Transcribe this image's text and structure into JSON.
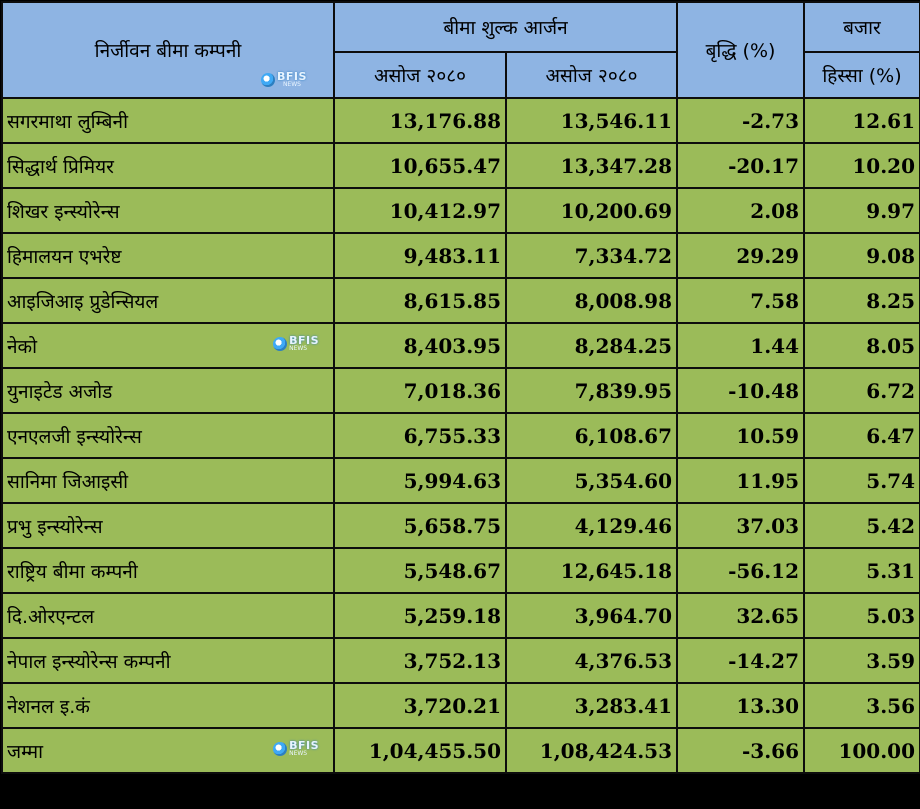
{
  "header": {
    "company_col": "निर्जीवन बीमा कम्पनी",
    "premium_group": "बीमा शुल्क आर्जन",
    "period_1": "असोज २०८०",
    "period_2": "असोज २०८०",
    "growth": "बृद्धि (%)",
    "market_share_top": "बजार",
    "market_share_bottom": "हिस्सा (%)"
  },
  "logo": {
    "main": "BFIS",
    "sub": "NEWS",
    "icon": "bfis-logo-icon"
  },
  "rows": [
    {
      "name": "सगरमाथा लुम्बिनी",
      "p1": "13,176.88",
      "p2": "13,546.11",
      "growth": "-2.73",
      "share": "12.61"
    },
    {
      "name": "सिद्धार्थ प्रिमियर",
      "p1": "10,655.47",
      "p2": "13,347.28",
      "growth": "-20.17",
      "share": "10.20"
    },
    {
      "name": "शिखर इन्स्योरेन्स",
      "p1": "10,412.97",
      "p2": "10,200.69",
      "growth": "2.08",
      "share": "9.97"
    },
    {
      "name": "हिमालयन एभरेष्ट",
      "p1": "9,483.11",
      "p2": "7,334.72",
      "growth": "29.29",
      "share": "9.08"
    },
    {
      "name": "आइजिआइ प्रुडेन्सियल",
      "p1": "8,615.85",
      "p2": "8,008.98",
      "growth": "7.58",
      "share": "8.25"
    },
    {
      "name": "नेको",
      "p1": "8,403.95",
      "p2": "8,284.25",
      "growth": "1.44",
      "share": "8.05"
    },
    {
      "name": "युनाइटेड अजोड",
      "p1": "7,018.36",
      "p2": "7,839.95",
      "growth": "-10.48",
      "share": "6.72"
    },
    {
      "name": "एनएलजी इन्स्योरेन्स",
      "p1": "6,755.33",
      "p2": "6,108.67",
      "growth": "10.59",
      "share": "6.47"
    },
    {
      "name": "सानिमा जिआइसी",
      "p1": "5,994.63",
      "p2": "5,354.60",
      "growth": "11.95",
      "share": "5.74"
    },
    {
      "name": "प्रभु इन्स्योरेन्स",
      "p1": "5,658.75",
      "p2": "4,129.46",
      "growth": "37.03",
      "share": "5.42"
    },
    {
      "name": "राष्ट्रिय बीमा कम्पनी",
      "p1": "5,548.67",
      "p2": "12,645.18",
      "growth": "-56.12",
      "share": "5.31"
    },
    {
      "name": "दि.ओरएन्टल",
      "p1": "5,259.18",
      "p2": "3,964.70",
      "growth": "32.65",
      "share": "5.03"
    },
    {
      "name": "नेपाल इन्स्योरेन्स कम्पनी",
      "p1": "3,752.13",
      "p2": "4,376.53",
      "growth": "-14.27",
      "share": "3.59"
    },
    {
      "name": "नेशनल इ.कं",
      "p1": "3,720.21",
      "p2": "3,283.41",
      "growth": "13.30",
      "share": "3.56"
    },
    {
      "name": "जम्मा",
      "p1": "1,04,455.50",
      "p2": "1,08,424.53",
      "growth": "-3.66",
      "share": "100.00"
    }
  ]
}
